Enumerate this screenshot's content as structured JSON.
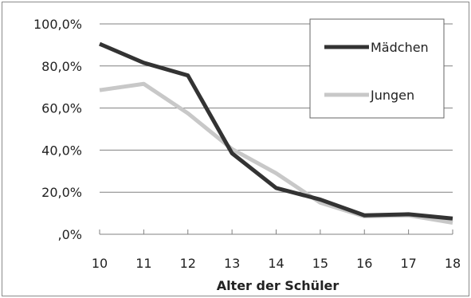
{
  "chart_data": {
    "type": "line",
    "title": "",
    "xlabel": "Alter der Schüler",
    "ylabel": "",
    "x": [
      "10",
      "11",
      "12",
      "13",
      "14",
      "15",
      "16",
      "17",
      "18"
    ],
    "ylim": [
      0,
      100
    ],
    "yticks": [
      "100,0%",
      "80,0%",
      "60,0%",
      "40,0%",
      "20,0%",
      ",0%"
    ],
    "ytick_values": [
      100,
      80,
      60,
      40,
      20,
      0
    ],
    "grid": true,
    "legend_position": "top-right",
    "series": [
      {
        "name": "Mädchen",
        "color": "#333333",
        "values": [
          90.5,
          81.5,
          75.5,
          38.5,
          22.0,
          16.5,
          9.0,
          9.5,
          7.5
        ]
      },
      {
        "name": "Jungen",
        "color": "#c8c8c8",
        "values": [
          68.5,
          71.5,
          57.5,
          40.5,
          29.0,
          15.0,
          8.5,
          9.0,
          5.5
        ]
      }
    ]
  }
}
